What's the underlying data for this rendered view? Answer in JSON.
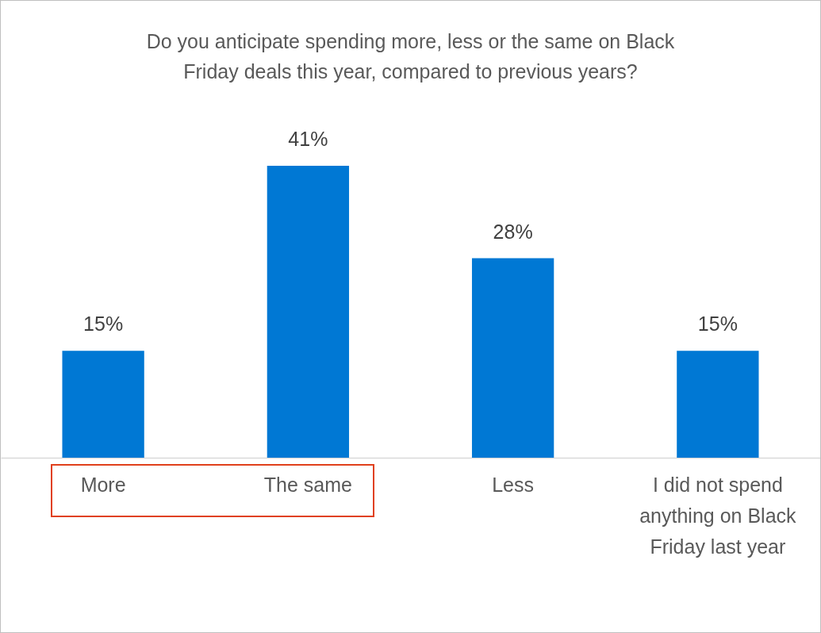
{
  "chart_data": {
    "type": "bar",
    "title": "Do you anticipate spending more, less or the same on Black Friday deals this year, compared to previous years?",
    "categories": [
      "More",
      "The same",
      "Less",
      "I did not spend anything on Black Friday last year"
    ],
    "values": [
      15,
      41,
      28,
      15
    ],
    "value_labels": [
      "15%",
      "41%",
      "28%",
      "15%"
    ],
    "color": "#0078d4",
    "tick_labels": "x"
  }
}
